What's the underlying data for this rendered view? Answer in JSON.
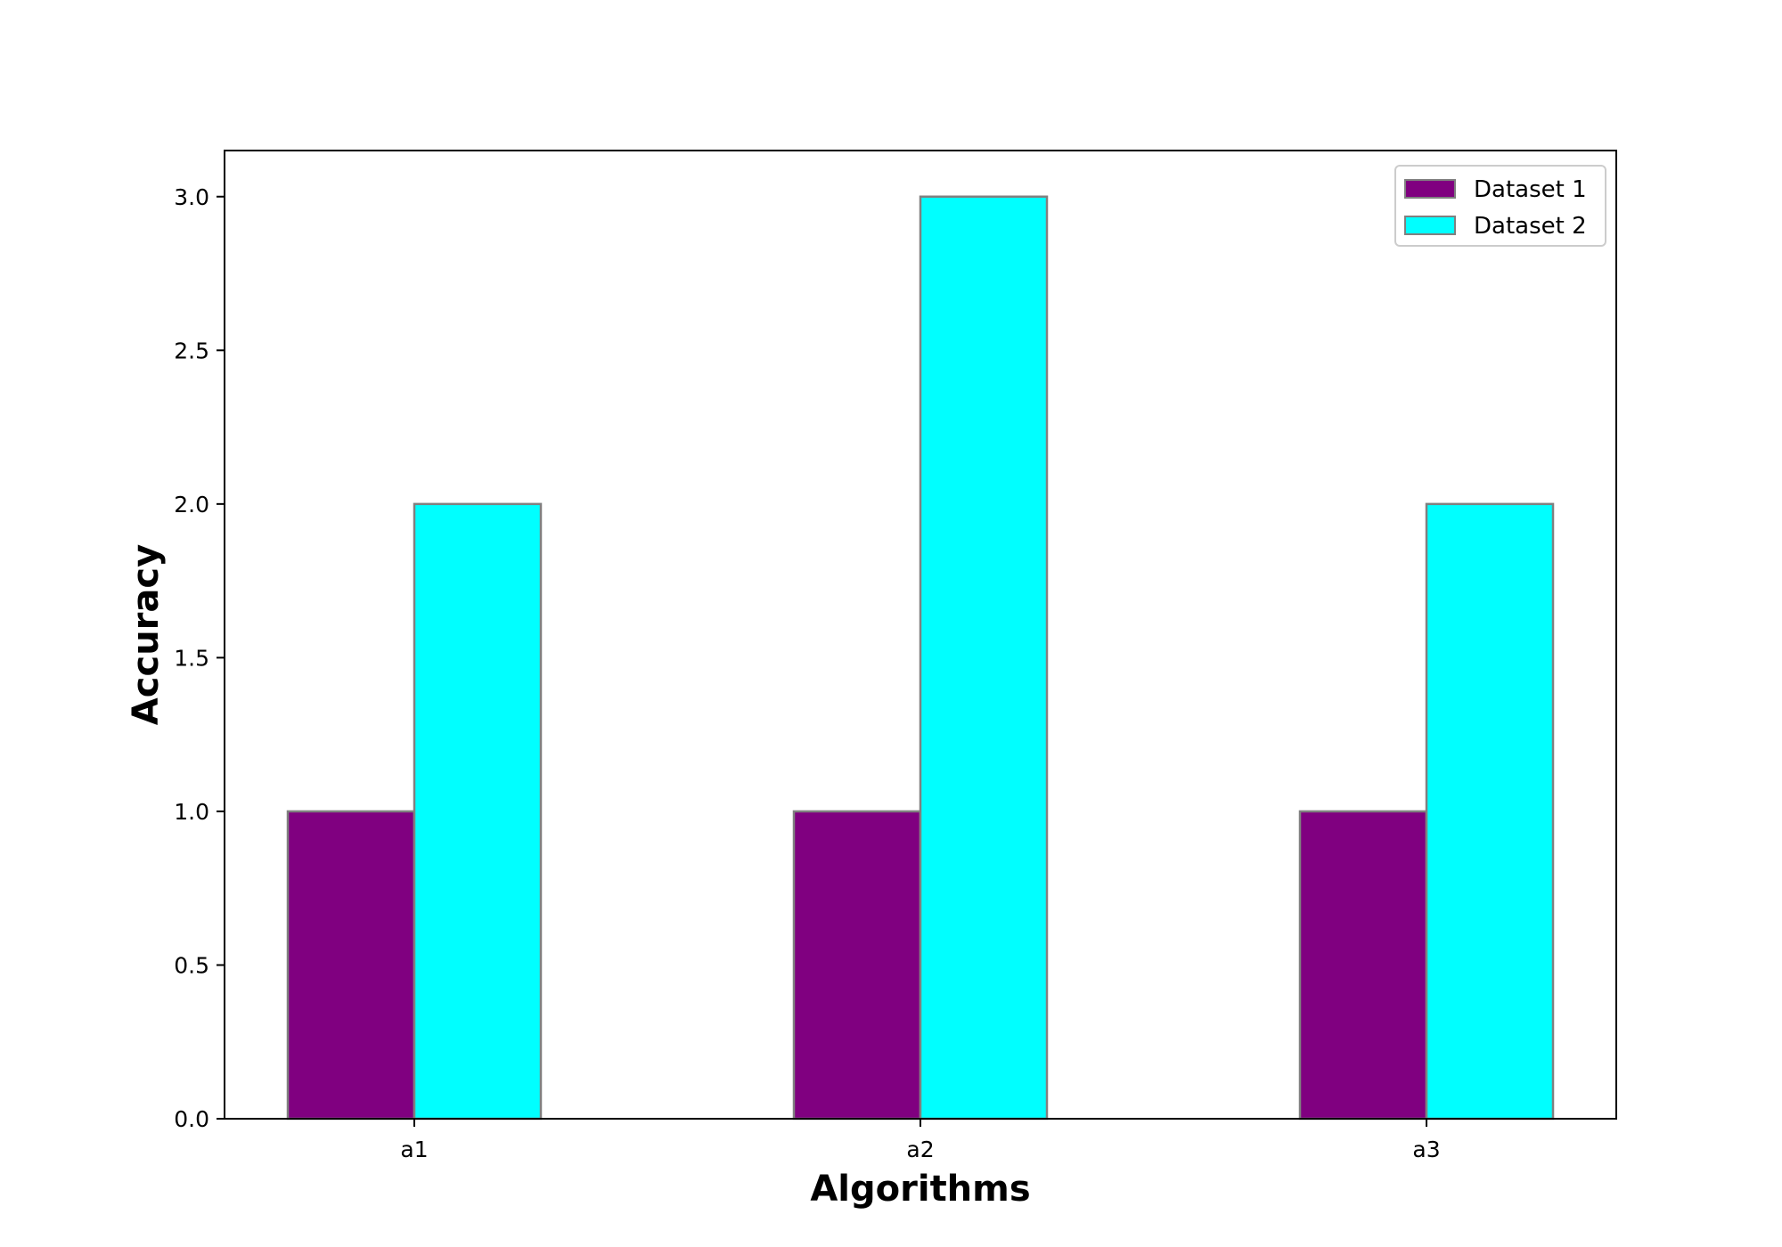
{
  "chart_data": {
    "type": "bar",
    "categories": [
      "a1",
      "a2",
      "a3"
    ],
    "series": [
      {
        "name": "Dataset 1",
        "values": [
          1,
          1,
          1
        ],
        "color": "#800080"
      },
      {
        "name": "Dataset 2",
        "values": [
          2,
          3,
          2
        ],
        "color": "#00FFFF"
      }
    ],
    "bar_edge_color": "#808080",
    "xlabel": "Algorithms",
    "ylabel": "Accuracy",
    "ylim": [
      0,
      3.15
    ],
    "yticks": [
      {
        "value": 0.0,
        "label": "0.0"
      },
      {
        "value": 0.5,
        "label": "0.5"
      },
      {
        "value": 1.0,
        "label": "1.0"
      },
      {
        "value": 1.5,
        "label": "1.5"
      },
      {
        "value": 2.0,
        "label": "2.0"
      },
      {
        "value": 2.5,
        "label": "2.5"
      },
      {
        "value": 3.0,
        "label": "3.0"
      }
    ],
    "grid": false,
    "legend_position": "top-right"
  }
}
